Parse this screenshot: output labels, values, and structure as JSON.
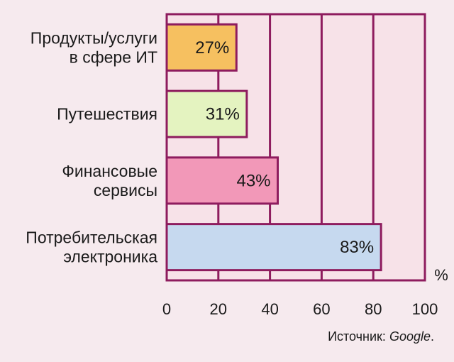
{
  "chart_data": {
    "type": "bar",
    "orientation": "horizontal",
    "categories": [
      [
        "Продукты/услуги",
        "в сфере ИТ"
      ],
      [
        "Путешествия"
      ],
      [
        "Финансовые",
        "сервисы"
      ],
      [
        "Потребительская",
        "электроника"
      ]
    ],
    "values": [
      27,
      31,
      43,
      83
    ],
    "value_labels": [
      "27%",
      "31%",
      "43%",
      "83%"
    ],
    "bar_colors": [
      "#f6c060",
      "#e4f3c0",
      "#f298b8",
      "#c6d9ef"
    ],
    "xlim": [
      0,
      100
    ],
    "x_ticks": [
      "0",
      "20",
      "40",
      "60",
      "80",
      "100"
    ],
    "x_unit": "%",
    "grid": true,
    "source_prefix": "Источник: ",
    "source_name": "Google",
    "source_suffix": ".",
    "colors": {
      "background": "#f6eaee",
      "plot_background": "#f7e2e8",
      "frame": "#8e1c5e",
      "text": "#1a1a1a"
    }
  }
}
